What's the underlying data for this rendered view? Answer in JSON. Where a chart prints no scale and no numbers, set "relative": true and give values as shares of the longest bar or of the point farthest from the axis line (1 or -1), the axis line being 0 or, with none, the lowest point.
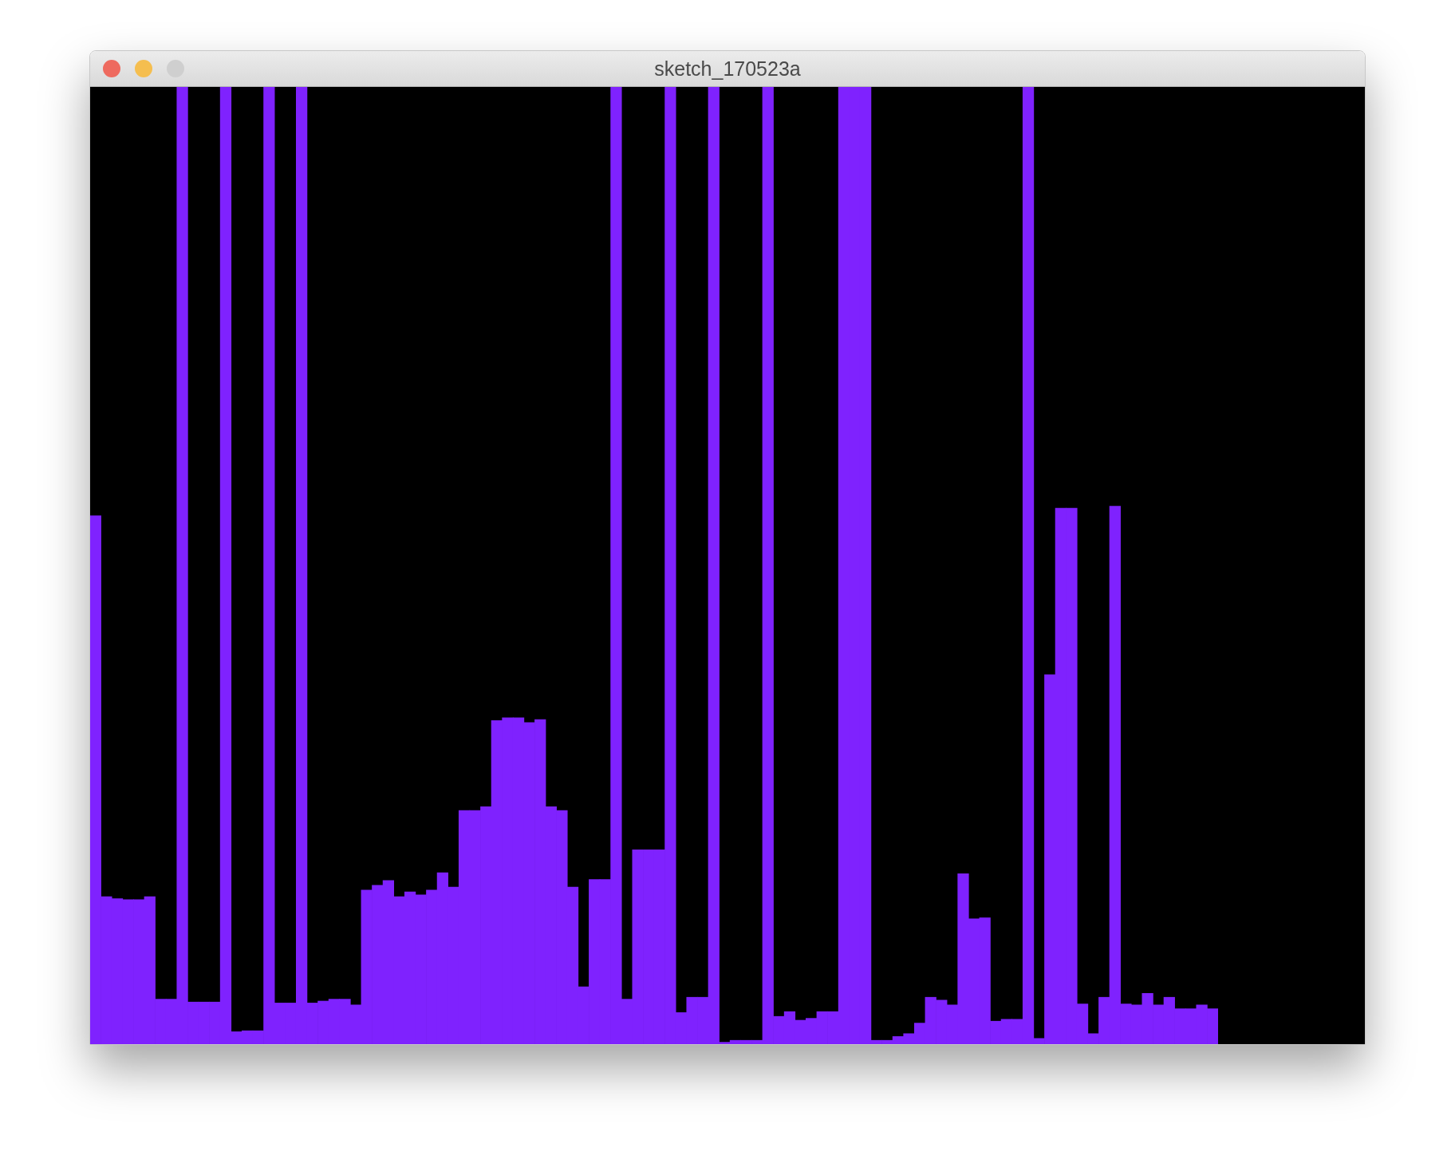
{
  "chart_data": {
    "type": "bar",
    "title": "sketch_170523a",
    "relative": true,
    "color": "#7f22fe",
    "categories": [
      null,
      null,
      null,
      null,
      null,
      null,
      null,
      null,
      null,
      null,
      null,
      null,
      null,
      null,
      null,
      null,
      null,
      null,
      null,
      null,
      null,
      null,
      null,
      null,
      null,
      null,
      null,
      null,
      null,
      null,
      null,
      null,
      null,
      null,
      null,
      null,
      null,
      null,
      null,
      null,
      null,
      null,
      null,
      null,
      null,
      null,
      null,
      null,
      null,
      null,
      null,
      null,
      null,
      null,
      null,
      null,
      null,
      null,
      null,
      null,
      null,
      null,
      null,
      null,
      null,
      null,
      null,
      null,
      null,
      null,
      null,
      null,
      null,
      null,
      null,
      null,
      null,
      null,
      null,
      null,
      null,
      null,
      null,
      null,
      null,
      null,
      null,
      null,
      null,
      null,
      null,
      null,
      null,
      null,
      null,
      null,
      null,
      null,
      null,
      null,
      null,
      null,
      null,
      null
    ],
    "values": [
      0.552,
      0.154,
      0.152,
      0.151,
      0.151,
      0.154,
      0.047,
      0.047,
      1,
      0.044,
      0.044,
      0.044,
      1,
      0.013,
      0.014,
      0.014,
      1,
      0.043,
      0.043,
      1,
      0.043,
      0.045,
      0.047,
      0.047,
      0.041,
      0.161,
      0.166,
      0.171,
      0.154,
      0.159,
      0.156,
      0.161,
      0.179,
      0.164,
      0.244,
      0.244,
      0.248,
      0.338,
      0.341,
      0.341,
      0.336,
      0.339,
      0.248,
      0.244,
      0.164,
      0.06,
      0.172,
      0.172,
      1,
      0.047,
      0.203,
      0.203,
      0.203,
      1,
      0.033,
      0.049,
      0.049,
      1,
      0.002,
      0.004,
      0.004,
      0.004,
      1,
      0.029,
      0.034,
      0.025,
      0.027,
      0.034,
      0.034,
      1,
      1,
      1,
      0.004,
      0.004,
      0.008,
      0.011,
      0.022,
      0.049,
      0.046,
      0.041,
      0.178,
      0.131,
      0.132,
      0.024,
      0.026,
      0.026,
      1,
      0.006,
      0.386,
      0.56,
      0.56,
      0.042,
      0.011,
      0.049,
      0.562,
      0.042,
      0.041,
      0.053,
      0.041,
      0.049,
      0.037,
      0.037,
      0.041,
      0.037
    ]
  }
}
